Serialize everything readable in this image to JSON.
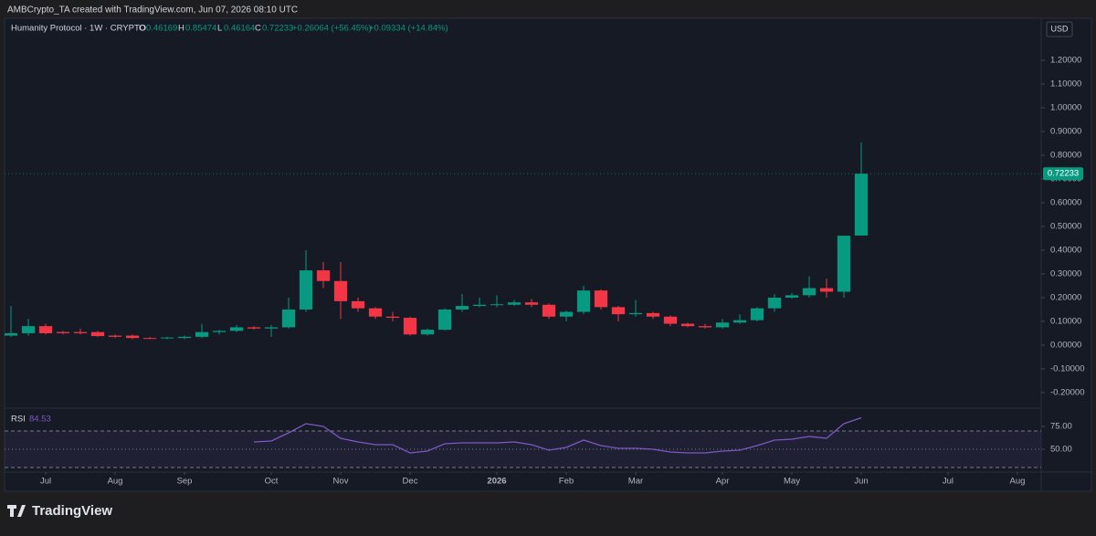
{
  "header": {
    "attribution": "AMBCrypto_TA created with TradingView.com, Jun 07, 2026 08:10 UTC",
    "currency_button": "USD",
    "brand": "TradingView"
  },
  "chart_data": {
    "type": "candlestick",
    "title": "Humanity Protocol · 1W · CRYPTO",
    "ohlc_labels": [
      "O",
      "H",
      "L",
      "C"
    ],
    "change": "+0.26064 (+56.45%)",
    "change_2": "+0.09334 (+14.84%)",
    "up_color": "#089981",
    "down_color": "#f23645",
    "categories": [
      null,
      null,
      null,
      null,
      null,
      null,
      null,
      null,
      null,
      null,
      null,
      null,
      null,
      null,
      null,
      null,
      null,
      null,
      null,
      null,
      null,
      null,
      null,
      null,
      null,
      null,
      null,
      null,
      null,
      null,
      null,
      null,
      null,
      null,
      null,
      null,
      null,
      null,
      null,
      null,
      null,
      null,
      null,
      null,
      null,
      null,
      null,
      null,
      null,
      null
    ],
    "open": [
      0.04,
      0.05,
      0.08,
      0.055,
      0.055,
      0.055,
      0.04,
      0.04,
      0.03,
      0.03,
      0.03,
      0.035,
      0.055,
      0.06,
      0.075,
      0.07,
      0.075,
      0.15,
      0.315,
      0.27,
      0.185,
      0.155,
      0.12,
      0.115,
      0.045,
      0.065,
      0.15,
      0.165,
      0.17,
      0.17,
      0.18,
      0.17,
      0.12,
      0.14,
      0.23,
      0.16,
      0.13,
      0.135,
      0.12,
      0.09,
      0.08,
      0.075,
      0.095,
      0.105,
      0.155,
      0.2,
      0.21,
      0.24,
      0.225,
      0.46169
    ],
    "high": [
      0.165,
      0.11,
      0.09,
      0.06,
      0.07,
      0.06,
      0.045,
      0.045,
      0.035,
      0.035,
      0.04,
      0.09,
      0.065,
      0.085,
      0.08,
      0.085,
      0.2,
      0.4,
      0.35,
      0.35,
      0.2,
      0.16,
      0.14,
      0.12,
      0.07,
      0.155,
      0.215,
      0.2,
      0.21,
      0.19,
      0.195,
      0.175,
      0.145,
      0.25,
      0.235,
      0.165,
      0.19,
      0.14,
      0.125,
      0.095,
      0.09,
      0.11,
      0.13,
      0.16,
      0.215,
      0.22,
      0.29,
      0.28,
      0.46,
      0.85474
    ],
    "low": [
      0.035,
      0.04,
      0.045,
      0.045,
      0.045,
      0.035,
      0.03,
      0.025,
      0.025,
      0.025,
      0.025,
      0.03,
      0.045,
      0.055,
      0.065,
      0.035,
      0.07,
      0.14,
      0.24,
      0.11,
      0.14,
      0.11,
      0.1,
      0.04,
      0.04,
      0.06,
      0.14,
      0.16,
      0.16,
      0.165,
      0.16,
      0.11,
      0.1,
      0.13,
      0.15,
      0.1,
      0.12,
      0.11,
      0.08,
      0.075,
      0.07,
      0.07,
      0.09,
      0.1,
      0.14,
      0.195,
      0.2,
      0.2,
      0.2,
      0.46164
    ],
    "close": [
      0.05,
      0.08,
      0.05,
      0.05,
      0.05,
      0.038,
      0.035,
      0.03,
      0.028,
      0.032,
      0.035,
      0.055,
      0.06,
      0.075,
      0.07,
      0.075,
      0.15,
      0.315,
      0.27,
      0.185,
      0.155,
      0.12,
      0.115,
      0.045,
      0.065,
      0.15,
      0.165,
      0.17,
      0.172,
      0.18,
      0.17,
      0.12,
      0.14,
      0.23,
      0.16,
      0.13,
      0.135,
      0.12,
      0.09,
      0.08,
      0.075,
      0.095,
      0.105,
      0.155,
      0.2,
      0.21,
      0.24,
      0.225,
      0.461,
      0.72233
    ],
    "xlim": [
      -0.37,
      59.37
    ],
    "xticks": [
      {
        "value": 2,
        "label": "Jul"
      },
      {
        "value": 6,
        "label": "Aug"
      },
      {
        "value": 10,
        "label": "Sep"
      },
      {
        "value": 15,
        "label": "Oct"
      },
      {
        "value": 19,
        "label": "Nov"
      },
      {
        "value": 23,
        "label": "Dec"
      },
      {
        "value": 28,
        "label": "2026"
      },
      {
        "value": 32,
        "label": "Feb"
      },
      {
        "value": 36,
        "label": "Mar"
      },
      {
        "value": 41,
        "label": "Apr"
      },
      {
        "value": 45,
        "label": "May"
      },
      {
        "value": 49,
        "label": "Jun"
      },
      {
        "value": 54,
        "label": "Jul"
      },
      {
        "value": 58,
        "label": "Aug"
      }
    ],
    "ylim": [
      -0.258,
      1.281
    ],
    "yticks": [
      {
        "value": -0.2,
        "label": "-0.20000"
      },
      {
        "value": -0.1,
        "label": "-0.10000"
      },
      {
        "value": 0,
        "label": "0.00000"
      },
      {
        "value": 0.1,
        "label": "0.10000"
      },
      {
        "value": 0.2,
        "label": "0.20000"
      },
      {
        "value": 0.3,
        "label": "0.30000"
      },
      {
        "value": 0.4,
        "label": "0.40000"
      },
      {
        "value": 0.5,
        "label": "0.50000"
      },
      {
        "value": 0.6,
        "label": "0.60000"
      },
      {
        "value": 0.7,
        "label": "0.70000"
      },
      {
        "value": 0.8,
        "label": "0.80000"
      },
      {
        "value": 0.9,
        "label": "0.90000"
      },
      {
        "value": 1.0,
        "label": "1.00000"
      },
      {
        "value": 1.1,
        "label": "1.10000"
      },
      {
        "value": 1.2,
        "label": "1.20000"
      }
    ],
    "rsi": {
      "name": "RSI",
      "color": "#7e57c2",
      "values": [
        null,
        null,
        null,
        null,
        null,
        null,
        null,
        null,
        null,
        null,
        null,
        null,
        null,
        null,
        58,
        59,
        68,
        78,
        75,
        62,
        58,
        55,
        55,
        46,
        48,
        56,
        57,
        57,
        57,
        58,
        55,
        49,
        52,
        60,
        54,
        51,
        51,
        50,
        47,
        46,
        46,
        48,
        49,
        54,
        60,
        61,
        64,
        62,
        78,
        84.53
      ],
      "ylim": [
        27,
        92
      ],
      "yticks": [
        {
          "value": 75,
          "label": "75.00"
        },
        {
          "value": 50,
          "label": "50.00"
        }
      ],
      "bands": [
        30,
        70
      ],
      "midline": 50
    }
  }
}
